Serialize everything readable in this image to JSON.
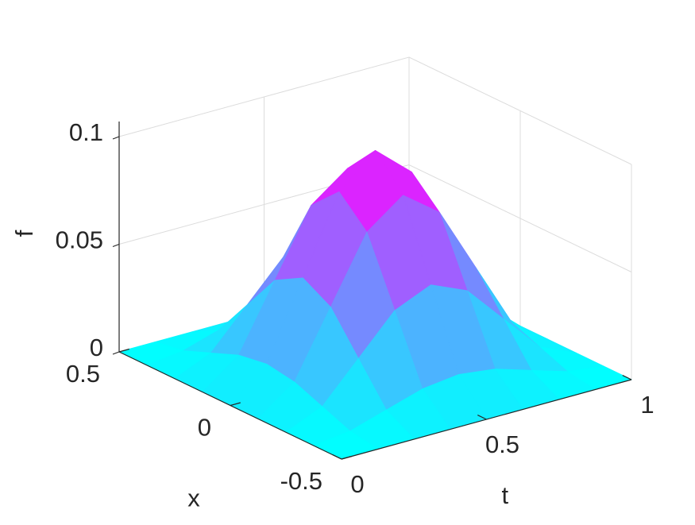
{
  "chart_data": {
    "type": "surface",
    "xlabel": "t",
    "ylabel": "x",
    "zlabel": "f",
    "x": [
      0,
      0.125,
      0.25,
      0.375,
      0.5,
      0.625,
      0.75,
      0.875,
      1
    ],
    "y": [
      -0.5,
      -0.375,
      -0.25,
      -0.125,
      0,
      0.125,
      0.25,
      0.375,
      0.5
    ],
    "z": [
      [
        0,
        0,
        0,
        0,
        0,
        0,
        0,
        0,
        0
      ],
      [
        0,
        0.0021,
        0.0073,
        0.0125,
        0.0146,
        0.0125,
        0.0073,
        0.0021,
        0
      ],
      [
        0,
        0.0073,
        0.025,
        0.0427,
        0.05,
        0.0427,
        0.025,
        0.0073,
        0
      ],
      [
        0,
        0.0125,
        0.0427,
        0.0729,
        0.0854,
        0.0729,
        0.0427,
        0.0125,
        0
      ],
      [
        0,
        0.0146,
        0.05,
        0.0854,
        0.1,
        0.0854,
        0.05,
        0.0146,
        0
      ],
      [
        0,
        0.0125,
        0.0427,
        0.0729,
        0.0854,
        0.0729,
        0.0427,
        0.0125,
        0
      ],
      [
        0,
        0.0073,
        0.025,
        0.0427,
        0.05,
        0.0427,
        0.025,
        0.0073,
        0
      ],
      [
        0,
        0.0021,
        0.0073,
        0.0125,
        0.0146,
        0.0125,
        0.0073,
        0.0021,
        0
      ],
      [
        0,
        0,
        0,
        0,
        0,
        0,
        0,
        0,
        0
      ]
    ],
    "xlim": [
      0,
      1
    ],
    "ylim": [
      -0.5,
      0.5
    ],
    "zlim": [
      0,
      0.1
    ],
    "xticks": [
      0,
      0.5,
      1
    ],
    "yticks": [
      -0.5,
      0,
      0.5
    ],
    "zticks": [
      0,
      0.05,
      0.1
    ],
    "colormap": [
      "#00ffff",
      "#ff00ff"
    ],
    "grid": true
  }
}
